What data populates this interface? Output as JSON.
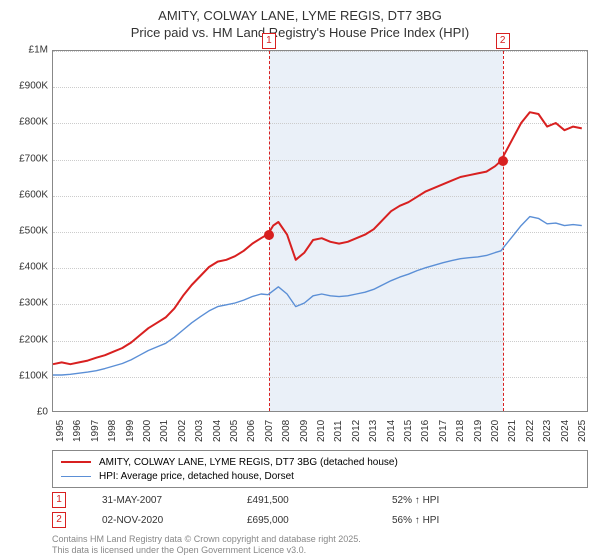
{
  "title_line1": "AMITY, COLWAY LANE, LYME REGIS, DT7 3BG",
  "title_line2": "Price paid vs. HM Land Registry's House Price Index (HPI)",
  "chart": {
    "type": "line",
    "background_color": "#ffffff",
    "shade_color": "#eaf0f8",
    "grid_color": "#cccccc",
    "border_color": "#888888",
    "x_years": [
      1995,
      1996,
      1997,
      1998,
      1999,
      2000,
      2001,
      2002,
      2003,
      2004,
      2005,
      2006,
      2007,
      2008,
      2009,
      2010,
      2011,
      2012,
      2013,
      2014,
      2015,
      2016,
      2017,
      2018,
      2019,
      2020,
      2021,
      2022,
      2023,
      2024,
      2025
    ],
    "xlim": [
      1995,
      2025.8
    ],
    "ylim": [
      0,
      1000000
    ],
    "ytick_step": 100000,
    "ytick_labels": [
      "£0",
      "£100K",
      "£200K",
      "£300K",
      "£400K",
      "£500K",
      "£600K",
      "£700K",
      "£800K",
      "£900K",
      "£1M"
    ],
    "series": [
      {
        "name": "property",
        "label": "AMITY, COLWAY LANE, LYME REGIS, DT7 3BG (detached house)",
        "color": "#d82020",
        "line_width": 2,
        "points": [
          [
            1995.0,
            130000
          ],
          [
            1995.5,
            135000
          ],
          [
            1996.0,
            130000
          ],
          [
            1996.5,
            135000
          ],
          [
            1997.0,
            140000
          ],
          [
            1997.5,
            148000
          ],
          [
            1998.0,
            155000
          ],
          [
            1998.5,
            165000
          ],
          [
            1999.0,
            175000
          ],
          [
            1999.5,
            190000
          ],
          [
            2000.0,
            210000
          ],
          [
            2000.5,
            230000
          ],
          [
            2001.0,
            245000
          ],
          [
            2001.5,
            260000
          ],
          [
            2002.0,
            285000
          ],
          [
            2002.5,
            320000
          ],
          [
            2003.0,
            350000
          ],
          [
            2003.5,
            375000
          ],
          [
            2004.0,
            400000
          ],
          [
            2004.5,
            415000
          ],
          [
            2005.0,
            420000
          ],
          [
            2005.5,
            430000
          ],
          [
            2006.0,
            445000
          ],
          [
            2006.5,
            465000
          ],
          [
            2007.0,
            480000
          ],
          [
            2007.4,
            491500
          ],
          [
            2007.7,
            515000
          ],
          [
            2008.0,
            525000
          ],
          [
            2008.5,
            490000
          ],
          [
            2009.0,
            420000
          ],
          [
            2009.5,
            440000
          ],
          [
            2010.0,
            475000
          ],
          [
            2010.5,
            480000
          ],
          [
            2011.0,
            470000
          ],
          [
            2011.5,
            465000
          ],
          [
            2012.0,
            470000
          ],
          [
            2012.5,
            480000
          ],
          [
            2013.0,
            490000
          ],
          [
            2013.5,
            505000
          ],
          [
            2014.0,
            530000
          ],
          [
            2014.5,
            555000
          ],
          [
            2015.0,
            570000
          ],
          [
            2015.5,
            580000
          ],
          [
            2016.0,
            595000
          ],
          [
            2016.5,
            610000
          ],
          [
            2017.0,
            620000
          ],
          [
            2017.5,
            630000
          ],
          [
            2018.0,
            640000
          ],
          [
            2018.5,
            650000
          ],
          [
            2019.0,
            655000
          ],
          [
            2019.5,
            660000
          ],
          [
            2020.0,
            665000
          ],
          [
            2020.5,
            680000
          ],
          [
            2020.84,
            695000
          ],
          [
            2021.0,
            710000
          ],
          [
            2021.5,
            755000
          ],
          [
            2022.0,
            800000
          ],
          [
            2022.5,
            830000
          ],
          [
            2023.0,
            825000
          ],
          [
            2023.5,
            790000
          ],
          [
            2024.0,
            800000
          ],
          [
            2024.5,
            780000
          ],
          [
            2025.0,
            790000
          ],
          [
            2025.5,
            785000
          ]
        ],
        "sale_markers": [
          {
            "x": 2007.41,
            "y": 491500
          },
          {
            "x": 2020.84,
            "y": 695000
          }
        ]
      },
      {
        "name": "hpi",
        "label": "HPI: Average price, detached house, Dorset",
        "color": "#5b8fd6",
        "line_width": 1.4,
        "points": [
          [
            1995.0,
            100000
          ],
          [
            1995.5,
            100000
          ],
          [
            1996.0,
            102000
          ],
          [
            1996.5,
            105000
          ],
          [
            1997.0,
            108000
          ],
          [
            1997.5,
            112000
          ],
          [
            1998.0,
            118000
          ],
          [
            1998.5,
            125000
          ],
          [
            1999.0,
            132000
          ],
          [
            1999.5,
            142000
          ],
          [
            2000.0,
            155000
          ],
          [
            2000.5,
            168000
          ],
          [
            2001.0,
            178000
          ],
          [
            2001.5,
            188000
          ],
          [
            2002.0,
            205000
          ],
          [
            2002.5,
            225000
          ],
          [
            2003.0,
            245000
          ],
          [
            2003.5,
            262000
          ],
          [
            2004.0,
            278000
          ],
          [
            2004.5,
            290000
          ],
          [
            2005.0,
            295000
          ],
          [
            2005.5,
            300000
          ],
          [
            2006.0,
            308000
          ],
          [
            2006.5,
            318000
          ],
          [
            2007.0,
            325000
          ],
          [
            2007.4,
            323000
          ],
          [
            2008.0,
            345000
          ],
          [
            2008.5,
            325000
          ],
          [
            2009.0,
            290000
          ],
          [
            2009.5,
            300000
          ],
          [
            2010.0,
            320000
          ],
          [
            2010.5,
            325000
          ],
          [
            2011.0,
            320000
          ],
          [
            2011.5,
            318000
          ],
          [
            2012.0,
            320000
          ],
          [
            2012.5,
            325000
          ],
          [
            2013.0,
            330000
          ],
          [
            2013.5,
            338000
          ],
          [
            2014.0,
            350000
          ],
          [
            2014.5,
            362000
          ],
          [
            2015.0,
            372000
          ],
          [
            2015.5,
            380000
          ],
          [
            2016.0,
            390000
          ],
          [
            2016.5,
            398000
          ],
          [
            2017.0,
            405000
          ],
          [
            2017.5,
            412000
          ],
          [
            2018.0,
            418000
          ],
          [
            2018.5,
            423000
          ],
          [
            2019.0,
            426000
          ],
          [
            2019.5,
            428000
          ],
          [
            2020.0,
            432000
          ],
          [
            2020.5,
            440000
          ],
          [
            2020.84,
            445000
          ],
          [
            2021.0,
            455000
          ],
          [
            2021.5,
            485000
          ],
          [
            2022.0,
            515000
          ],
          [
            2022.5,
            540000
          ],
          [
            2023.0,
            535000
          ],
          [
            2023.5,
            520000
          ],
          [
            2024.0,
            522000
          ],
          [
            2024.5,
            515000
          ],
          [
            2025.0,
            518000
          ],
          [
            2025.5,
            515000
          ]
        ]
      }
    ],
    "events": [
      {
        "id": "1",
        "year": 2007.41,
        "date": "31-MAY-2007",
        "price": "£491,500",
        "delta": "52% ↑ HPI"
      },
      {
        "id": "2",
        "year": 2020.84,
        "date": "02-NOV-2020",
        "price": "£695,000",
        "delta": "56% ↑ HPI"
      }
    ]
  },
  "legend": {
    "rows": [
      {
        "color": "#d82020",
        "width": 2,
        "label": "AMITY, COLWAY LANE, LYME REGIS, DT7 3BG (detached house)"
      },
      {
        "color": "#5b8fd6",
        "width": 1.4,
        "label": "HPI: Average price, detached house, Dorset"
      }
    ]
  },
  "copyright_line1": "Contains HM Land Registry data © Crown copyright and database right 2025.",
  "copyright_line2": "This data is licensed under the Open Government Licence v3.0."
}
